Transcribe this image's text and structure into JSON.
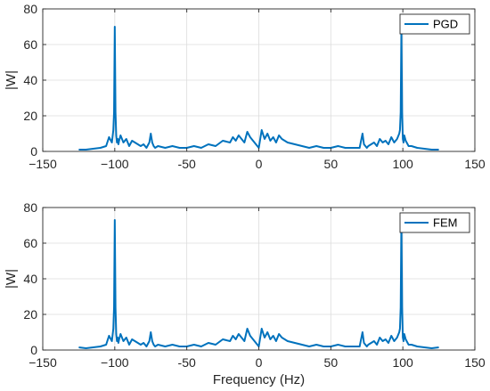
{
  "chart_data": [
    {
      "type": "line",
      "title": "",
      "xlabel": "",
      "ylabel": "|W|",
      "xlim": [
        -150,
        150
      ],
      "ylim": [
        0,
        80
      ],
      "xticks": [
        -150,
        -100,
        -50,
        0,
        50,
        100,
        150
      ],
      "xtick_labels": [
        "−150",
        "−100",
        "-50",
        "0",
        "50",
        "100",
        "150"
      ],
      "yticks": [
        0,
        20,
        40,
        60,
        80
      ],
      "grid": true,
      "legend_position": "top-right",
      "line_color": "#0072BD",
      "series": [
        {
          "name": "PGD",
          "x": [
            -125,
            -120,
            -115,
            -110,
            -106,
            -104,
            -102,
            -101,
            -100.5,
            -100,
            -99.5,
            -99,
            -98.5,
            -98,
            -97.5,
            -97,
            -96,
            -94,
            -92,
            -90,
            -88,
            -86,
            -84,
            -82,
            -80,
            -78,
            -76,
            -75,
            -74,
            -73,
            -72,
            -70,
            -65,
            -60,
            -55,
            -50,
            -45,
            -40,
            -35,
            -30,
            -25,
            -20,
            -18,
            -16,
            -14,
            -12,
            -10,
            -8,
            -6,
            -4,
            -2,
            0,
            2,
            4,
            6,
            8,
            10,
            12,
            14,
            16,
            18,
            20,
            25,
            30,
            35,
            40,
            45,
            50,
            55,
            60,
            65,
            70,
            72,
            73,
            74,
            75,
            76,
            78,
            80,
            82,
            84,
            86,
            88,
            90,
            92,
            94,
            96,
            97,
            97.5,
            98,
            98.5,
            99,
            99.5,
            100,
            100.5,
            101,
            102,
            104,
            106,
            110,
            115,
            120,
            125
          ],
          "y": [
            1,
            1,
            1.5,
            2,
            3,
            8,
            5,
            12,
            22,
            70,
            22,
            9,
            5,
            7,
            4,
            6,
            9,
            5,
            7,
            3,
            6,
            5,
            4,
            3,
            4,
            2,
            5,
            10,
            5,
            3,
            2,
            3,
            2,
            3,
            2,
            2,
            3,
            2,
            4,
            3,
            6,
            5,
            8,
            6,
            9,
            7,
            5,
            11,
            8,
            6,
            4,
            2,
            12,
            7,
            10,
            6,
            8,
            5,
            9,
            7,
            6,
            5,
            4,
            3,
            2,
            3,
            2,
            2,
            3,
            2,
            2,
            2,
            10,
            4,
            3,
            2,
            3,
            4,
            5,
            3,
            7,
            5,
            6,
            4,
            8,
            5,
            7,
            9,
            10,
            12,
            22,
            69,
            22,
            7,
            5,
            9,
            6,
            3,
            3,
            2,
            1.5,
            1,
            1
          ]
        }
      ]
    },
    {
      "type": "line",
      "title": "",
      "xlabel": "Frequency (Hz)",
      "ylabel": "|W|",
      "xlim": [
        -150,
        150
      ],
      "ylim": [
        0,
        80
      ],
      "xticks": [
        -150,
        -100,
        -50,
        0,
        50,
        100,
        150
      ],
      "xtick_labels": [
        "−150",
        "−100",
        "-50",
        "0",
        "50",
        "100",
        "150"
      ],
      "yticks": [
        0,
        20,
        40,
        60,
        80
      ],
      "grid": true,
      "legend_position": "top-right",
      "line_color": "#0072BD",
      "series": [
        {
          "name": "FEM",
          "x": [
            -125,
            -120,
            -115,
            -110,
            -106,
            -104,
            -102,
            -101,
            -100.5,
            -100,
            -99.5,
            -99,
            -98.5,
            -98,
            -97.5,
            -97,
            -96,
            -94,
            -92,
            -90,
            -88,
            -86,
            -84,
            -82,
            -80,
            -78,
            -76,
            -75,
            -74,
            -73,
            -72,
            -70,
            -65,
            -60,
            -55,
            -50,
            -45,
            -40,
            -35,
            -30,
            -25,
            -20,
            -18,
            -16,
            -14,
            -12,
            -10,
            -8,
            -6,
            -4,
            -2,
            0,
            2,
            4,
            6,
            8,
            10,
            12,
            14,
            16,
            18,
            20,
            25,
            30,
            35,
            40,
            45,
            50,
            55,
            60,
            65,
            70,
            72,
            73,
            74,
            75,
            76,
            78,
            80,
            82,
            84,
            86,
            88,
            90,
            92,
            94,
            96,
            97,
            97.5,
            98,
            98.5,
            99,
            99.5,
            100,
            100.5,
            101,
            102,
            104,
            106,
            110,
            115,
            120,
            125
          ],
          "y": [
            1.5,
            1,
            1.5,
            2,
            3,
            8,
            5,
            12,
            24,
            73,
            24,
            9,
            5,
            7,
            4,
            6,
            9,
            5,
            7,
            3,
            6,
            5,
            4,
            3,
            4,
            2,
            5,
            10,
            5,
            3,
            2,
            3,
            2,
            3,
            2,
            2,
            3,
            2,
            4,
            3,
            6,
            5,
            8,
            6,
            9,
            7,
            5,
            12,
            8,
            6,
            4,
            2,
            12,
            7,
            10,
            6,
            8,
            5,
            9,
            7,
            6,
            5,
            4,
            3,
            2,
            3,
            2,
            2,
            3,
            2,
            2,
            2,
            10,
            4,
            3,
            2,
            3,
            4,
            5,
            3,
            7,
            5,
            6,
            4,
            8,
            5,
            7,
            9,
            10,
            12,
            24,
            73,
            24,
            7,
            5,
            9,
            6,
            3,
            3,
            2,
            1.5,
            1,
            1.5
          ]
        }
      ]
    }
  ]
}
